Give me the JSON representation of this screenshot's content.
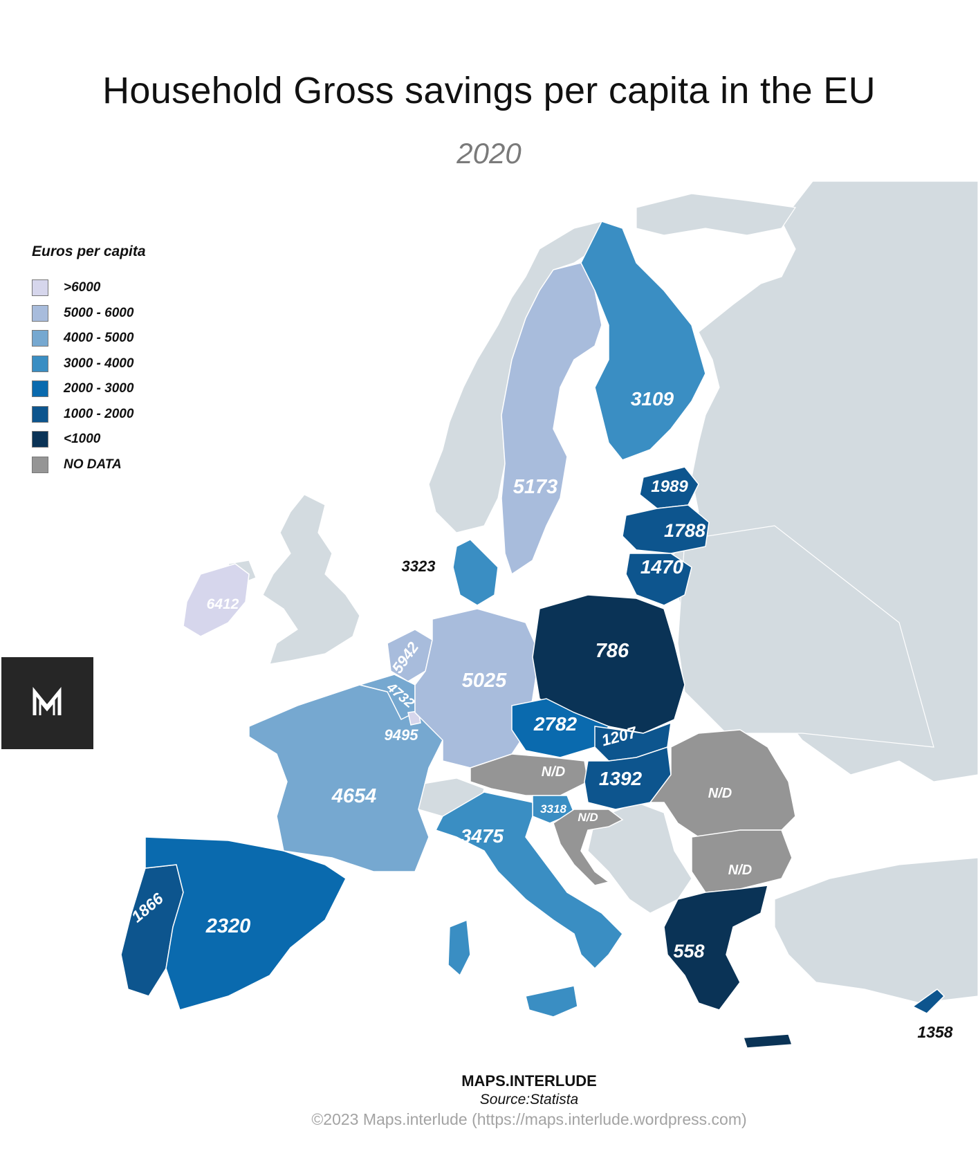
{
  "title": "Household Gross savings per capita in the EU",
  "subtitle": "2020",
  "legend": {
    "title": "Euros per capita",
    "items": [
      {
        "label": ">6000",
        "color": "#d6d6ec"
      },
      {
        "label": "5000 - 6000",
        "color": "#a8bcdc"
      },
      {
        "label": "4000 - 5000",
        "color": "#76a8d0"
      },
      {
        "label": "3000 - 4000",
        "color": "#3a8ec3"
      },
      {
        "label": "2000 - 3000",
        "color": "#0a6aae"
      },
      {
        "label": "1000 - 2000",
        "color": "#0d558e"
      },
      {
        "label": "<1000",
        "color": "#0a3356"
      },
      {
        "label": "NO DATA",
        "color": "#959595"
      }
    ]
  },
  "background_colors": {
    "sea": "#ffffff",
    "non_eu_land": "#d3dbe0",
    "borders": "#ffffff"
  },
  "countries": [
    {
      "id": "ireland",
      "value": "6412",
      "class": ">6000"
    },
    {
      "id": "luxembourg",
      "value": "9495",
      "class": ">6000"
    },
    {
      "id": "netherlands",
      "value": "5942",
      "class": "5000 - 6000"
    },
    {
      "id": "sweden",
      "value": "5173",
      "class": "5000 - 6000"
    },
    {
      "id": "germany",
      "value": "5025",
      "class": "5000 - 6000"
    },
    {
      "id": "belgium",
      "value": "4732",
      "class": "4000 - 5000"
    },
    {
      "id": "france",
      "value": "4654",
      "class": "4000 - 5000"
    },
    {
      "id": "italy",
      "value": "3475",
      "class": "3000 - 4000"
    },
    {
      "id": "denmark",
      "value": "3323",
      "class": "3000 - 4000"
    },
    {
      "id": "slovenia",
      "value": "3318",
      "class": "3000 - 4000"
    },
    {
      "id": "finland",
      "value": "3109",
      "class": "3000 - 4000"
    },
    {
      "id": "czechia",
      "value": "2782",
      "class": "2000 - 3000"
    },
    {
      "id": "spain",
      "value": "2320",
      "class": "2000 - 3000"
    },
    {
      "id": "estonia",
      "value": "1989",
      "class": "1000 - 2000"
    },
    {
      "id": "portugal",
      "value": "1866",
      "class": "1000 - 2000"
    },
    {
      "id": "latvia",
      "value": "1788",
      "class": "1000 - 2000"
    },
    {
      "id": "lithuania",
      "value": "1470",
      "class": "1000 - 2000"
    },
    {
      "id": "hungary",
      "value": "1392",
      "class": "1000 - 2000"
    },
    {
      "id": "cyprus",
      "value": "1358",
      "class": "1000 - 2000"
    },
    {
      "id": "slovakia",
      "value": "1207",
      "class": "1000 - 2000"
    },
    {
      "id": "poland",
      "value": "786",
      "class": "<1000"
    },
    {
      "id": "greece",
      "value": "558",
      "class": "<1000"
    },
    {
      "id": "austria",
      "value": "N/D",
      "class": "NO DATA"
    },
    {
      "id": "croatia",
      "value": "N/D",
      "class": "NO DATA"
    },
    {
      "id": "romania",
      "value": "N/D",
      "class": "NO DATA"
    },
    {
      "id": "bulgaria",
      "value": "N/D",
      "class": "NO DATA"
    }
  ],
  "footer": {
    "brand": "MAPS.INTERLUDE",
    "source": "Source:Statista",
    "copyright": "©2023 Maps.interlude (https://maps.interlude.wordpress.com)"
  }
}
